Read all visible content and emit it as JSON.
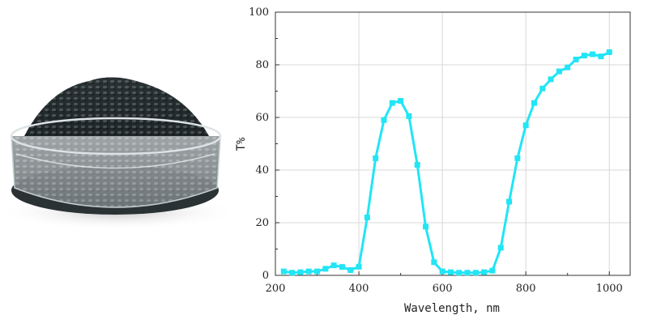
{
  "chart_data": {
    "type": "line",
    "title": "",
    "xlabel": "Wavelength, nm",
    "ylabel": "T%",
    "xlim": [
      200,
      1050
    ],
    "ylim": [
      0,
      100
    ],
    "x_ticks": [
      "200",
      "400",
      "600",
      "800",
      "1000"
    ],
    "y_ticks": [
      "0",
      "20",
      "40",
      "60",
      "80",
      "100"
    ],
    "grid": true,
    "series_color": "#22e5f5",
    "marker": "square",
    "series": [
      {
        "points": [
          [
            220,
            1.5
          ],
          [
            240,
            1.0
          ],
          [
            260,
            1.2
          ],
          [
            280,
            1.5
          ],
          [
            300,
            1.5
          ],
          [
            320,
            2.5
          ],
          [
            340,
            3.8
          ],
          [
            360,
            3.2
          ],
          [
            380,
            2.0
          ],
          [
            400,
            3.3
          ],
          [
            420,
            22
          ],
          [
            440,
            44.5
          ],
          [
            460,
            59
          ],
          [
            480,
            65.5
          ],
          [
            500,
            66.3
          ],
          [
            520,
            60.5
          ],
          [
            540,
            42
          ],
          [
            560,
            18.5
          ],
          [
            580,
            5.0
          ],
          [
            600,
            1.5
          ],
          [
            620,
            1.2
          ],
          [
            640,
            1.0
          ],
          [
            660,
            1.0
          ],
          [
            680,
            1.0
          ],
          [
            700,
            1.2
          ],
          [
            720,
            1.8
          ],
          [
            740,
            10.5
          ],
          [
            760,
            28
          ],
          [
            780,
            44.5
          ],
          [
            800,
            57
          ],
          [
            820,
            65.5
          ],
          [
            840,
            71
          ],
          [
            860,
            74.5
          ],
          [
            880,
            77.5
          ],
          [
            900,
            79
          ],
          [
            920,
            82
          ],
          [
            940,
            83.5
          ],
          [
            960,
            84
          ],
          [
            980,
            83.2
          ],
          [
            1000,
            84.8
          ]
        ]
      }
    ]
  }
}
